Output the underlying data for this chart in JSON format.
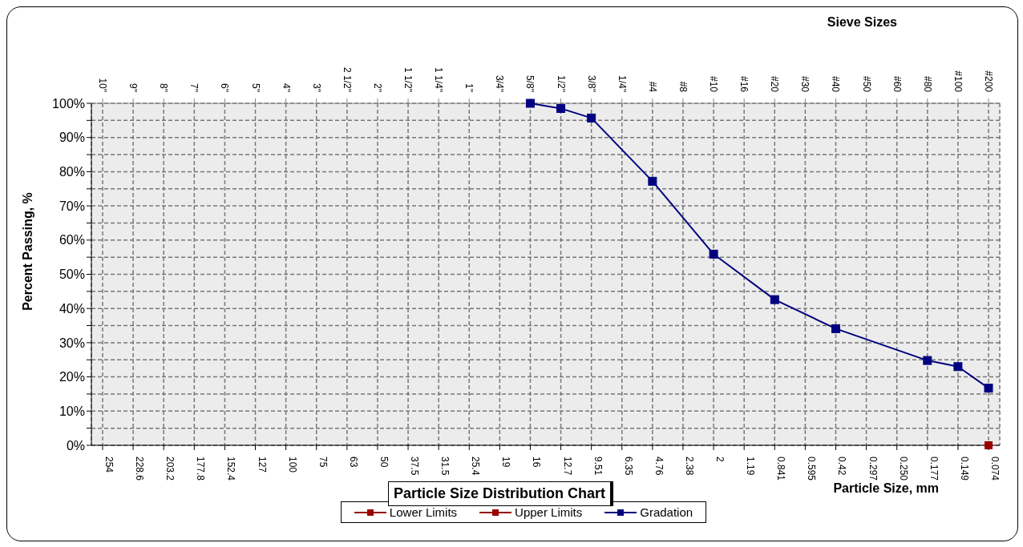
{
  "chart_data": {
    "type": "line",
    "title": "Particle Size Distribution Chart",
    "xlabel": "Particle Size, mm",
    "ylabel": "Percent Passing, %",
    "x2label": "Sieve Sizes",
    "categories": [
      "254",
      "228.6",
      "203.2",
      "177.8",
      "152.4",
      "127",
      "100",
      "75",
      "63",
      "50",
      "37.5",
      "31.5",
      "25.4",
      "19",
      "16",
      "12.7",
      "9.51",
      "6.35",
      "4.76",
      "2.38",
      "2",
      "1.19",
      "0.841",
      "0.595",
      "0.42",
      "0.297",
      "0.250",
      "0.177",
      "0.149",
      "0.074"
    ],
    "annotations": [
      "10\"",
      "9\"",
      "8\"",
      "7\"",
      "6\"",
      "5\"",
      "4\"",
      "3\"",
      "2 1/2\"",
      "2\"",
      "1 1/2\"",
      "1 1/4\"",
      "1\"",
      "3/4\"",
      "5/8\"",
      "1/2\"",
      "3/8\"",
      "1/4\"",
      "#4",
      "#8",
      "#10",
      "#16",
      "#20",
      "#30",
      "#40",
      "#50",
      "#60",
      "#80",
      "#100",
      "#200"
    ],
    "series": [
      {
        "name": "Lower Limits",
        "type": "scatter",
        "color": "#990000",
        "values": [
          null,
          null,
          null,
          null,
          null,
          null,
          null,
          null,
          null,
          null,
          null,
          null,
          null,
          null,
          null,
          null,
          null,
          null,
          null,
          null,
          null,
          null,
          null,
          null,
          null,
          null,
          null,
          null,
          null,
          0
        ]
      },
      {
        "name": "Upper Limits",
        "color": "#990000",
        "values": [
          null,
          null,
          null,
          null,
          null,
          null,
          null,
          null,
          null,
          null,
          null,
          null,
          null,
          null,
          null,
          null,
          null,
          null,
          null,
          null,
          null,
          null,
          null,
          null,
          null,
          null,
          null,
          null,
          null,
          null
        ]
      },
      {
        "name": "Gradation",
        "color": "#000080",
        "values": [
          null,
          null,
          null,
          null,
          null,
          null,
          null,
          null,
          null,
          null,
          null,
          null,
          null,
          null,
          100,
          98.5,
          95.7,
          null,
          77.2,
          null,
          55.9,
          null,
          42.6,
          null,
          34.1,
          null,
          null,
          24.8,
          23,
          16.7
        ]
      }
    ],
    "ylim": [
      0,
      100
    ],
    "yticks": [
      {
        "value": 0,
        "label": "0%"
      },
      {
        "value": 5,
        "label": null
      },
      {
        "value": 10,
        "label": "10%"
      },
      {
        "value": 15,
        "label": null
      },
      {
        "value": 20,
        "label": "20%"
      },
      {
        "value": 25,
        "label": null
      },
      {
        "value": 30,
        "label": "30%"
      },
      {
        "value": 35,
        "label": null
      },
      {
        "value": 40,
        "label": "40%"
      },
      {
        "value": 45,
        "label": null
      },
      {
        "value": 50,
        "label": "50%"
      },
      {
        "value": 55,
        "label": null
      },
      {
        "value": 60,
        "label": "60%"
      },
      {
        "value": 65,
        "label": null
      },
      {
        "value": 70,
        "label": "70%"
      },
      {
        "value": 75,
        "label": null
      },
      {
        "value": 80,
        "label": "80%"
      },
      {
        "value": 85,
        "label": null
      },
      {
        "value": 90,
        "label": "90%"
      },
      {
        "value": 95,
        "label": null
      },
      {
        "value": 100,
        "label": "100%"
      }
    ],
    "grid": true,
    "legend": "bottom",
    "marker": "square",
    "line_style": "solid"
  }
}
